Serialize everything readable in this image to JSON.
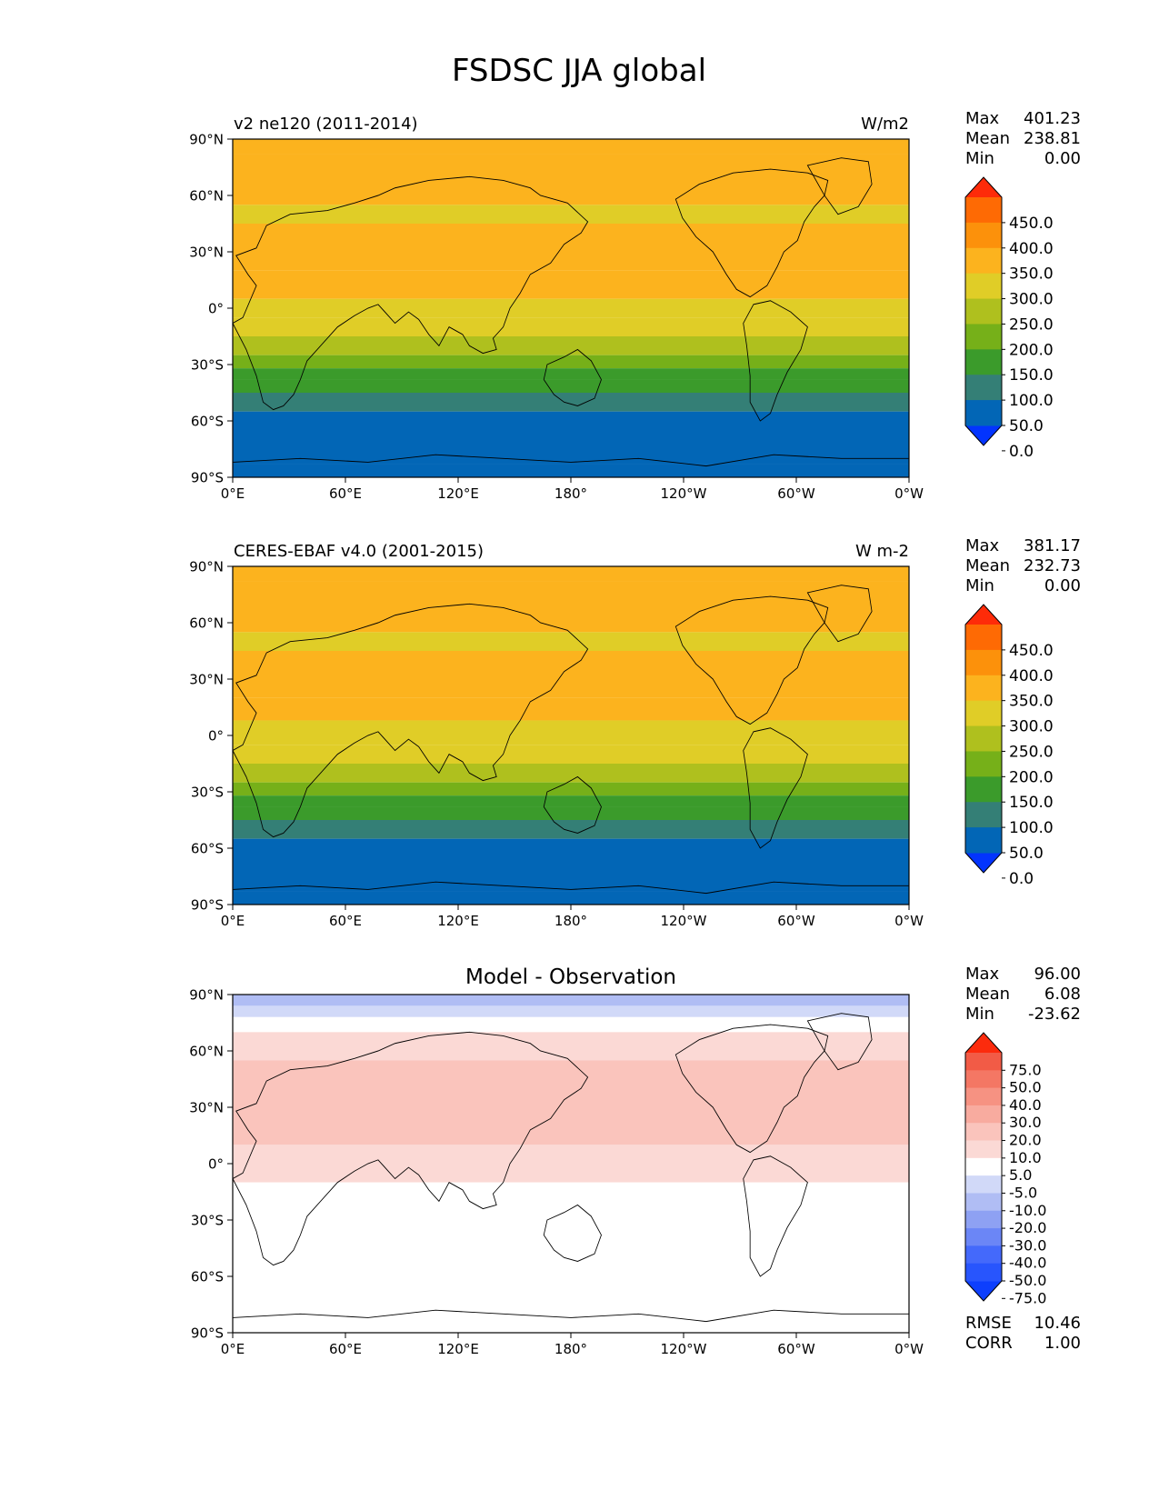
{
  "title": "FSDSC JJA global",
  "lat_ticks": [
    "90°N",
    "60°N",
    "30°N",
    "0°",
    "30°S",
    "60°S",
    "90°S"
  ],
  "lon_ticks": [
    "0°E",
    "60°E",
    "120°E",
    "180°",
    "120°W",
    "60°W",
    "0°W"
  ],
  "stat_labels": {
    "max": "Max",
    "mean": "Mean",
    "min": "Min",
    "rmse": "RMSE",
    "corr": "CORR"
  },
  "colors": {
    "abs_bands": [
      "#0334fe",
      "#0266b6",
      "#347f76",
      "#3b9b2b",
      "#76b019",
      "#afc01e",
      "#e0cd27",
      "#fcb31e",
      "#fc910b",
      "#fe6a04",
      "#fe2b09"
    ],
    "abs_extend_low": "#0334fe",
    "abs_extend_high": "#fe2b09",
    "diff_bands": [
      "#0d3ffd",
      "#2855fd",
      "#4469fb",
      "#6b86f6",
      "#8ea1f3",
      "#b0bdf4",
      "#d1d9f8",
      "#ffffff",
      "#fbd9d5",
      "#fac4bc",
      "#f8ab9f",
      "#f69282",
      "#f47764",
      "#f25b46",
      "#fc2b0d"
    ]
  },
  "panels": [
    {
      "id": "model",
      "left_title": "v2 ne120 (2011-2014)",
      "center_title": "",
      "units": "W/m2",
      "stats": {
        "max": "401.23",
        "mean": "238.81",
        "min": "0.00"
      },
      "colorbar_ticks": [
        "450.0",
        "400.0",
        "350.0",
        "300.0",
        "250.0",
        "200.0",
        "150.0",
        "100.0",
        "50.0",
        "0.0"
      ]
    },
    {
      "id": "obs",
      "left_title": "CERES-EBAF v4.0 (2001-2015)",
      "center_title": "",
      "units": "W m-2",
      "stats": {
        "max": "381.17",
        "mean": "232.73",
        "min": "0.00"
      },
      "colorbar_ticks": [
        "450.0",
        "400.0",
        "350.0",
        "300.0",
        "250.0",
        "200.0",
        "150.0",
        "100.0",
        "50.0",
        "0.0"
      ]
    },
    {
      "id": "diff",
      "left_title": "",
      "center_title": "Model - Observation",
      "units": "",
      "stats": {
        "max": "96.00",
        "mean": "6.08",
        "min": "-23.62"
      },
      "extra_stats": {
        "rmse": "10.46",
        "corr": "1.00"
      },
      "colorbar_ticks": [
        "75.0",
        "50.0",
        "40.0",
        "30.0",
        "20.0",
        "10.0",
        "5.0",
        "-5.0",
        "-10.0",
        "-20.0",
        "-30.0",
        "-40.0",
        "-50.0",
        "-75.0"
      ]
    }
  ],
  "chart_data": {
    "type": "heatmap",
    "projection": "PlateCarree, central longitude 180",
    "xlim": [
      0,
      360
    ],
    "ylim": [
      -90,
      90
    ],
    "xticks": [
      0,
      60,
      120,
      180,
      240,
      300,
      360
    ],
    "yticks": [
      90,
      60,
      30,
      0,
      -30,
      -60,
      -90
    ],
    "abs_levels": [
      0,
      50,
      100,
      150,
      200,
      250,
      300,
      350,
      400,
      450
    ],
    "diff_levels": [
      -75,
      -50,
      -40,
      -30,
      -20,
      -10,
      -5,
      5,
      10,
      20,
      30,
      40,
      50,
      75
    ],
    "zonal_band_approx": {
      "model": [
        {
          "lat": [
            82,
            90
          ],
          "value": 320
        },
        {
          "lat": [
            55,
            82
          ],
          "value": 310
        },
        {
          "lat": [
            45,
            55
          ],
          "value": 290
        },
        {
          "lat": [
            20,
            45
          ],
          "value": 330
        },
        {
          "lat": [
            5,
            20
          ],
          "value": 320
        },
        {
          "lat": [
            -5,
            5
          ],
          "value": 280
        },
        {
          "lat": [
            -15,
            -5
          ],
          "value": 255
        },
        {
          "lat": [
            -25,
            -15
          ],
          "value": 220
        },
        {
          "lat": [
            -32,
            -25
          ],
          "value": 180
        },
        {
          "lat": [
            -38,
            -32
          ],
          "value": 140
        },
        {
          "lat": [
            -45,
            -38
          ],
          "value": 110
        },
        {
          "lat": [
            -55,
            -45
          ],
          "value": 75
        },
        {
          "lat": [
            -83,
            -55
          ],
          "value": 25
        },
        {
          "lat": [
            -90,
            -83
          ],
          "value": 0
        }
      ],
      "obs": [
        {
          "lat": [
            82,
            90
          ],
          "value": 320
        },
        {
          "lat": [
            55,
            82
          ],
          "value": 310
        },
        {
          "lat": [
            45,
            55
          ],
          "value": 290
        },
        {
          "lat": [
            20,
            45
          ],
          "value": 320
        },
        {
          "lat": [
            8,
            20
          ],
          "value": 315
        },
        {
          "lat": [
            -5,
            8
          ],
          "value": 280
        },
        {
          "lat": [
            -15,
            -5
          ],
          "value": 255
        },
        {
          "lat": [
            -25,
            -15
          ],
          "value": 220
        },
        {
          "lat": [
            -32,
            -25
          ],
          "value": 180
        },
        {
          "lat": [
            -38,
            -32
          ],
          "value": 140
        },
        {
          "lat": [
            -45,
            -38
          ],
          "value": 110
        },
        {
          "lat": [
            -55,
            -45
          ],
          "value": 75
        },
        {
          "lat": [
            -83,
            -55
          ],
          "value": 25
        },
        {
          "lat": [
            -90,
            -83
          ],
          "value": 0
        }
      ],
      "diff": [
        {
          "lat": [
            84,
            90
          ],
          "value": -15
        },
        {
          "lat": [
            78,
            84
          ],
          "value": -8
        },
        {
          "lat": [
            70,
            78
          ],
          "value": 0
        },
        {
          "lat": [
            55,
            70
          ],
          "value": 8
        },
        {
          "lat": [
            10,
            55
          ],
          "value": 15
        },
        {
          "lat": [
            -10,
            10
          ],
          "value": 7
        },
        {
          "lat": [
            -90,
            -10
          ],
          "value": 0
        }
      ]
    }
  }
}
